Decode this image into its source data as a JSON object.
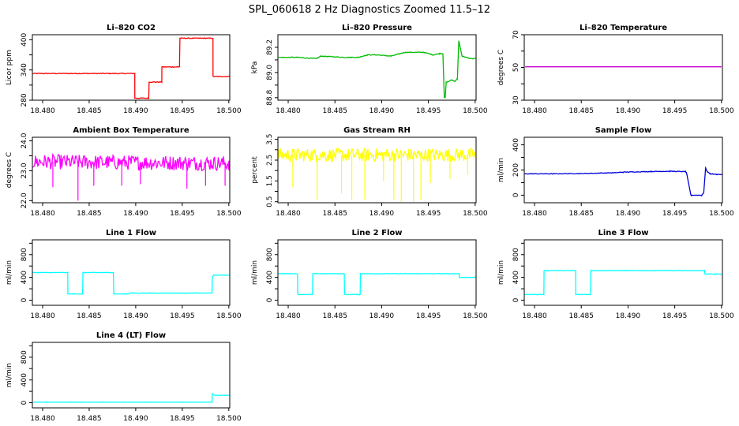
{
  "figure": {
    "title": "SPL_060618  2 Hz Diagnostics Zoomed 11.5–12"
  },
  "chart_data": [
    {
      "type": "line",
      "title": "Li–820 CO2",
      "ylabel": "Licor ppm",
      "color": "#ff0000",
      "xlim": [
        18.4789,
        18.5001
      ],
      "ylim": [
        280,
        410
      ],
      "yticks": [
        "280",
        "340",
        "400"
      ],
      "ytick_values": [
        280,
        340,
        400
      ],
      "yticks_extra": [
        "310",
        "370"
      ],
      "ytick_extra_values": [
        310,
        370
      ],
      "xticks": [
        "18.480",
        "18.485",
        "18.490",
        "18.495",
        "18.500"
      ],
      "xtick_values": [
        18.48,
        18.485,
        18.49,
        18.495,
        18.5
      ],
      "x": [
        18.479,
        18.4899,
        18.4899,
        18.4914,
        18.4914,
        18.4928,
        18.4928,
        18.4947,
        18.4947,
        18.4983,
        18.4983,
        18.5
      ],
      "y": [
        333,
        333,
        284,
        284,
        316,
        316,
        346,
        346,
        403,
        403,
        327,
        327
      ],
      "noise": 1.5
    },
    {
      "type": "line",
      "title": "Li–820 Pressure",
      "ylabel": "kPa",
      "color": "#00bb00",
      "xlim": [
        18.4789,
        18.5001
      ],
      "ylim": [
        88.78,
        89.3
      ],
      "yticks": [
        "88.8",
        "89.0",
        "89.2"
      ],
      "ytick_values": [
        88.8,
        89.0,
        89.2
      ],
      "yticks_extra": [
        "88.9",
        "89.1"
      ],
      "ytick_extra_values": [
        88.9,
        89.1
      ],
      "xticks": [
        "18.480",
        "18.485",
        "18.490",
        "18.495",
        "18.500"
      ],
      "xtick_values": [
        18.48,
        18.485,
        18.49,
        18.495,
        18.5
      ],
      "x": [
        18.479,
        18.481,
        18.483,
        18.4835,
        18.486,
        18.4875,
        18.4885,
        18.4895,
        18.491,
        18.4925,
        18.4945,
        18.4955,
        18.4962,
        18.49655,
        18.4967,
        18.4968,
        18.4969,
        18.4975,
        18.4978,
        18.4981,
        18.49825,
        18.4986,
        18.4995,
        18.5
      ],
      "y": [
        89.12,
        89.12,
        89.11,
        89.13,
        89.12,
        89.12,
        89.14,
        89.14,
        89.13,
        89.16,
        89.16,
        89.14,
        89.15,
        89.15,
        88.8,
        88.8,
        88.92,
        88.94,
        88.93,
        88.95,
        89.25,
        89.13,
        89.11,
        89.11
      ],
      "noise": 0.006
    },
    {
      "type": "line",
      "title": "Li–820 Temperature",
      "ylabel": "degrees C",
      "color": "#cc00cc",
      "xlim": [
        18.4789,
        18.5001
      ],
      "ylim": [
        30,
        70
      ],
      "yticks": [
        "30",
        "50",
        "70"
      ],
      "ytick_values": [
        30,
        50,
        70
      ],
      "yticks_extra": [
        "40",
        "60"
      ],
      "ytick_extra_values": [
        40,
        60
      ],
      "xticks": [
        "18.480",
        "18.485",
        "18.490",
        "18.495",
        "18.500"
      ],
      "xtick_values": [
        18.48,
        18.485,
        18.49,
        18.495,
        18.5
      ],
      "x": [
        18.479,
        18.5
      ],
      "y": [
        50.4,
        50.4
      ],
      "noise": 0
    },
    {
      "type": "line",
      "title": "Ambient Box Temperature",
      "ylabel": "degrees C",
      "color": "#ff00ff",
      "xlim": [
        18.4789,
        18.5001
      ],
      "ylim": [
        21.93,
        24.12
      ],
      "yticks": [
        "22.0",
        "23.0",
        "24.0"
      ],
      "ytick_values": [
        22.0,
        23.0,
        24.0
      ],
      "yticks_extra": [
        "22.5",
        "23.5"
      ],
      "ytick_extra_values": [
        22.5,
        23.5
      ],
      "xticks": [
        "18.480",
        "18.485",
        "18.490",
        "18.495",
        "18.500"
      ],
      "xtick_values": [
        18.48,
        18.485,
        18.49,
        18.495,
        18.5
      ],
      "x": [
        18.479,
        18.5
      ],
      "y": [
        23.3,
        23.25
      ],
      "noise": 0.5,
      "spikes": [
        {
          "x": 18.4838,
          "y": 22.0
        },
        {
          "x": 18.4811,
          "y": 22.45
        },
        {
          "x": 18.4855,
          "y": 22.5
        },
        {
          "x": 18.4885,
          "y": 22.5
        },
        {
          "x": 18.4905,
          "y": 22.55
        },
        {
          "x": 18.4955,
          "y": 22.4
        },
        {
          "x": 18.4975,
          "y": 22.5
        },
        {
          "x": 18.4996,
          "y": 22.5
        }
      ]
    },
    {
      "type": "line",
      "title": "Gas Stream RH",
      "ylabel": "percent",
      "color": "#ffff00",
      "xlim": [
        18.4789,
        18.5001
      ],
      "ylim": [
        0.45,
        3.6
      ],
      "yticks": [
        "0.5",
        "1.5",
        "2.5",
        "3.5"
      ],
      "ytick_values": [
        0.5,
        1.5,
        2.5,
        3.5
      ],
      "yticks_extra": [
        "1.0",
        "2.0",
        "3.0"
      ],
      "ytick_extra_values": [
        1.0,
        2.0,
        3.0
      ],
      "xticks": [
        "18.480",
        "18.485",
        "18.490",
        "18.495",
        "18.500"
      ],
      "xtick_values": [
        18.48,
        18.485,
        18.49,
        18.495,
        18.5
      ],
      "x": [
        18.479,
        18.5
      ],
      "y": [
        2.75,
        2.75
      ],
      "noise": 0.65,
      "spikes": [
        {
          "x": 18.4805,
          "y": 1.2
        },
        {
          "x": 18.4831,
          "y": 0.6
        },
        {
          "x": 18.4857,
          "y": 0.9
        },
        {
          "x": 18.4868,
          "y": 0.6
        },
        {
          "x": 18.4882,
          "y": 0.6
        },
        {
          "x": 18.4902,
          "y": 1.5
        },
        {
          "x": 18.4913,
          "y": 0.6
        },
        {
          "x": 18.4921,
          "y": 0.5
        },
        {
          "x": 18.4934,
          "y": 0.5
        },
        {
          "x": 18.4942,
          "y": 0.6
        },
        {
          "x": 18.4952,
          "y": 1.4
        },
        {
          "x": 18.4973,
          "y": 1.6
        },
        {
          "x": 18.4992,
          "y": 1.8
        }
      ]
    },
    {
      "type": "line",
      "title": "Sample Flow",
      "ylabel": "ml/min",
      "color": "#0000dd",
      "xlim": [
        18.4789,
        18.5001
      ],
      "ylim": [
        -60,
        460
      ],
      "yticks": [
        "0",
        "200",
        "400"
      ],
      "ytick_values": [
        0,
        200,
        400
      ],
      "yticks_extra": [
        "100",
        "300"
      ],
      "ytick_extra_values": [
        100,
        300
      ],
      "xticks": [
        "18.480",
        "18.485",
        "18.490",
        "18.495",
        "18.500"
      ],
      "xtick_values": [
        18.48,
        18.485,
        18.49,
        18.495,
        18.5
      ],
      "x": [
        18.479,
        18.482,
        18.485,
        18.4885,
        18.4895,
        18.4925,
        18.4945,
        18.49615,
        18.49625,
        18.4967,
        18.49675,
        18.4979,
        18.4981,
        18.4983,
        18.4985,
        18.4988,
        18.4995,
        18.5
      ],
      "y": [
        170,
        170,
        172,
        178,
        183,
        188,
        190,
        187,
        180,
        10,
        0,
        0,
        20,
        215,
        185,
        170,
        165,
        165
      ],
      "noise": 5
    },
    {
      "type": "line",
      "title": "Line 1 Flow",
      "ylabel": "ml/min",
      "color": "#00ffff",
      "xlim": [
        18.4789,
        18.5001
      ],
      "ylim": [
        -90,
        1060
      ],
      "yticks": [
        "0",
        "400",
        "800"
      ],
      "ytick_values": [
        0,
        400,
        800
      ],
      "yticks_extra": [
        "200",
        "600",
        "1000"
      ],
      "ytick_extra_values": [
        200,
        600,
        1000
      ],
      "xticks": [
        "18.480",
        "18.485",
        "18.490",
        "18.495",
        "18.500"
      ],
      "xtick_values": [
        18.48,
        18.485,
        18.49,
        18.495,
        18.5
      ],
      "x": [
        18.479,
        18.4827,
        18.4827,
        18.4843,
        18.4843,
        18.4876,
        18.4876,
        18.4893,
        18.4893,
        18.4982,
        18.4982,
        18.4984,
        18.5
      ],
      "y": [
        485,
        485,
        110,
        110,
        485,
        485,
        110,
        110,
        125,
        125,
        400,
        440,
        440
      ],
      "noise": 8
    },
    {
      "type": "line",
      "title": "Line 2 Flow",
      "ylabel": "ml/min",
      "color": "#00ffff",
      "xlim": [
        18.4789,
        18.5001
      ],
      "ylim": [
        -90,
        1060
      ],
      "yticks": [
        "0",
        "400",
        "800"
      ],
      "ytick_values": [
        0,
        400,
        800
      ],
      "yticks_extra": [
        "200",
        "600",
        "1000"
      ],
      "ytick_extra_values": [
        200,
        600,
        1000
      ],
      "xticks": [
        "18.480",
        "18.485",
        "18.490",
        "18.495",
        "18.500"
      ],
      "xtick_values": [
        18.48,
        18.485,
        18.49,
        18.495,
        18.5
      ],
      "x": [
        18.479,
        18.481,
        18.481,
        18.4826,
        18.4826,
        18.486,
        18.486,
        18.4877,
        18.4877,
        18.4983,
        18.4983,
        18.5
      ],
      "y": [
        465,
        465,
        100,
        100,
        465,
        465,
        100,
        100,
        465,
        465,
        400,
        400
      ],
      "noise": 8
    },
    {
      "type": "line",
      "title": "Line 3 Flow",
      "ylabel": "ml/min",
      "color": "#00ffff",
      "xlim": [
        18.4789,
        18.5001
      ],
      "ylim": [
        -90,
        1060
      ],
      "yticks": [
        "0",
        "400",
        "800"
      ],
      "ytick_values": [
        0,
        400,
        800
      ],
      "yticks_extra": [
        "200",
        "600",
        "1000"
      ],
      "ytick_extra_values": [
        200,
        600,
        1000
      ],
      "xticks": [
        "18.480",
        "18.485",
        "18.490",
        "18.495",
        "18.500"
      ],
      "xtick_values": [
        18.48,
        18.485,
        18.49,
        18.495,
        18.5
      ],
      "x": [
        18.479,
        18.481,
        18.481,
        18.4844,
        18.4844,
        18.486,
        18.486,
        18.4982,
        18.4982,
        18.5
      ],
      "y": [
        100,
        100,
        520,
        520,
        100,
        100,
        520,
        520,
        460,
        460
      ],
      "noise": 8
    },
    {
      "type": "line",
      "title": "Line 4 (LT) Flow",
      "ylabel": "ml/min",
      "color": "#00ffff",
      "xlim": [
        18.4789,
        18.5001
      ],
      "ylim": [
        -90,
        1060
      ],
      "yticks": [
        "0",
        "400",
        "800"
      ],
      "ytick_values": [
        0,
        400,
        800
      ],
      "yticks_extra": [
        "200",
        "600",
        "1000"
      ],
      "ytick_extra_values": [
        200,
        600,
        1000
      ],
      "xticks": [
        "18.480",
        "18.485",
        "18.490",
        "18.495",
        "18.500"
      ],
      "xtick_values": [
        18.48,
        18.485,
        18.49,
        18.495,
        18.5
      ],
      "x": [
        18.479,
        18.4982,
        18.4982,
        18.4985,
        18.5
      ],
      "y": [
        10,
        10,
        160,
        130,
        130
      ],
      "noise": 3
    }
  ]
}
